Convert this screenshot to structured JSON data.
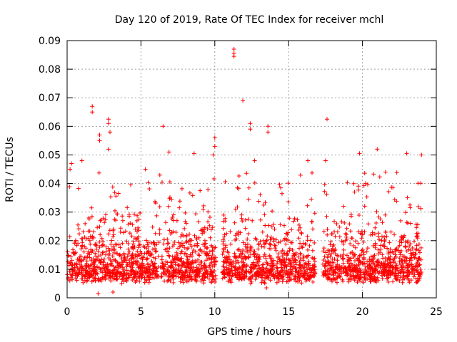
{
  "chart_data": {
    "type": "scatter",
    "title": "Day 120 of 2019, Rate Of TEC Index for receiver mchl",
    "xlabel": "GPS time / hours",
    "ylabel": "ROTI / TECUs",
    "xlim": [
      0,
      25
    ],
    "ylim": [
      0,
      0.09
    ],
    "xticks": [
      0,
      5,
      10,
      15,
      20,
      25
    ],
    "xtick_labels": [
      "0",
      "5",
      "10",
      "15",
      "20",
      "25"
    ],
    "yticks": [
      0,
      0.01,
      0.02,
      0.03,
      0.04,
      0.05,
      0.06,
      0.07,
      0.08,
      0.09
    ],
    "ytick_labels": [
      "0",
      "0.01",
      "0.02",
      "0.03",
      "0.04",
      "0.05",
      "0.06",
      "0.07",
      "0.08",
      "0.09"
    ],
    "grid": true,
    "marker": "+",
    "color": "#ff0000",
    "data_gaps_hours": [
      [
        10.1,
        10.5
      ],
      [
        16.8,
        17.3
      ]
    ],
    "notable_points": [
      {
        "x": 11.3,
        "y": 0.087
      },
      {
        "x": 11.3,
        "y": 0.0845
      },
      {
        "x": 11.3,
        "y": 0.0855
      },
      {
        "x": 11.9,
        "y": 0.069
      },
      {
        "x": 1.7,
        "y": 0.067
      },
      {
        "x": 1.7,
        "y": 0.065
      },
      {
        "x": 2.8,
        "y": 0.0625
      },
      {
        "x": 2.8,
        "y": 0.061
      },
      {
        "x": 2.9,
        "y": 0.058
      },
      {
        "x": 2.2,
        "y": 0.057
      },
      {
        "x": 2.2,
        "y": 0.055
      },
      {
        "x": 6.5,
        "y": 0.06
      },
      {
        "x": 12.4,
        "y": 0.061
      },
      {
        "x": 12.4,
        "y": 0.059
      },
      {
        "x": 13.6,
        "y": 0.06
      },
      {
        "x": 13.6,
        "y": 0.058
      },
      {
        "x": 17.6,
        "y": 0.0625
      },
      {
        "x": 10.0,
        "y": 0.056
      },
      {
        "x": 10.0,
        "y": 0.053
      },
      {
        "x": 9.9,
        "y": 0.05
      },
      {
        "x": 2.8,
        "y": 0.052
      },
      {
        "x": 21.0,
        "y": 0.052
      },
      {
        "x": 23.0,
        "y": 0.0505
      },
      {
        "x": 24.0,
        "y": 0.05
      },
      {
        "x": 19.8,
        "y": 0.0505
      },
      {
        "x": 8.6,
        "y": 0.0505
      },
      {
        "x": 6.9,
        "y": 0.051
      },
      {
        "x": 12.7,
        "y": 0.048
      },
      {
        "x": 16.3,
        "y": 0.048
      },
      {
        "x": 1.0,
        "y": 0.048
      },
      {
        "x": 0.3,
        "y": 0.047
      },
      {
        "x": 0.2,
        "y": 0.045
      },
      {
        "x": 5.3,
        "y": 0.045
      },
      {
        "x": 17.5,
        "y": 0.048
      },
      {
        "x": 2.1,
        "y": 0.0015
      },
      {
        "x": 3.1,
        "y": 0.002
      },
      {
        "x": 13.5,
        "y": 0.0035
      }
    ],
    "series_summary": {
      "name": "ROTI",
      "segments_hours": [
        [
          0.0,
          10.1
        ],
        [
          10.5,
          16.8
        ],
        [
          17.3,
          24.0
        ]
      ],
      "typical_range": [
        0.005,
        0.03
      ],
      "median_approx": 0.013
    }
  }
}
